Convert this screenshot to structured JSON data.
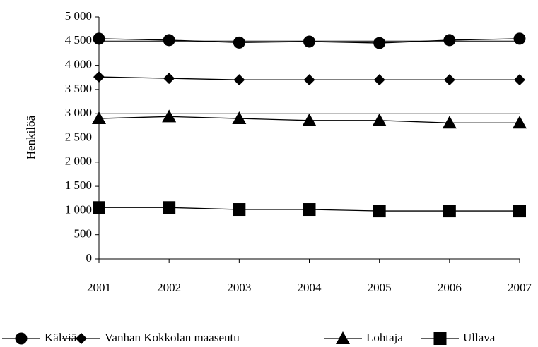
{
  "chart_data": {
    "type": "line",
    "y_label": "Henkilöä",
    "categories": [
      "2001",
      "2002",
      "2003",
      "2004",
      "2005",
      "2006",
      "2007"
    ],
    "series": [
      {
        "name": "Kälviä",
        "color": "#000000",
        "marker": "circle",
        "values": [
          4550,
          4520,
          4470,
          4490,
          4460,
          4520,
          4550
        ]
      },
      {
        "name": "Vanhan Kokkolan maaseutu",
        "color": "#000000",
        "marker": "diamond",
        "values": [
          3760,
          3730,
          3700,
          3700,
          3700,
          3700,
          3700
        ]
      },
      {
        "name": "Lohtaja",
        "color": "#000000",
        "marker": "triangle",
        "values": [
          2900,
          2940,
          2900,
          2860,
          2860,
          2810,
          2810
        ]
      },
      {
        "name": "Ullava",
        "color": "#000000",
        "marker": "square",
        "values": [
          1060,
          1060,
          1020,
          1020,
          990,
          990,
          990
        ]
      }
    ],
    "ylim": [
      0,
      5000
    ],
    "yticks": [
      0,
      500,
      {
        "value": 1000,
        "label": "1 000"
      },
      {
        "value": 1500,
        "label": "1 500"
      },
      {
        "value": 2000,
        "label": "2 000"
      },
      {
        "value": 2500,
        "label": "2 500"
      },
      {
        "value": 3000,
        "label": "3 000"
      },
      {
        "value": 3500,
        "label": "3 500"
      },
      {
        "value": 4000,
        "label": "4 000"
      },
      {
        "value": 4500,
        "label": "4 500"
      },
      {
        "value": 5000,
        "label": "5 000"
      }
    ],
    "grid_lines": [
      3000,
      4500
    ],
    "legend": "bottom"
  }
}
